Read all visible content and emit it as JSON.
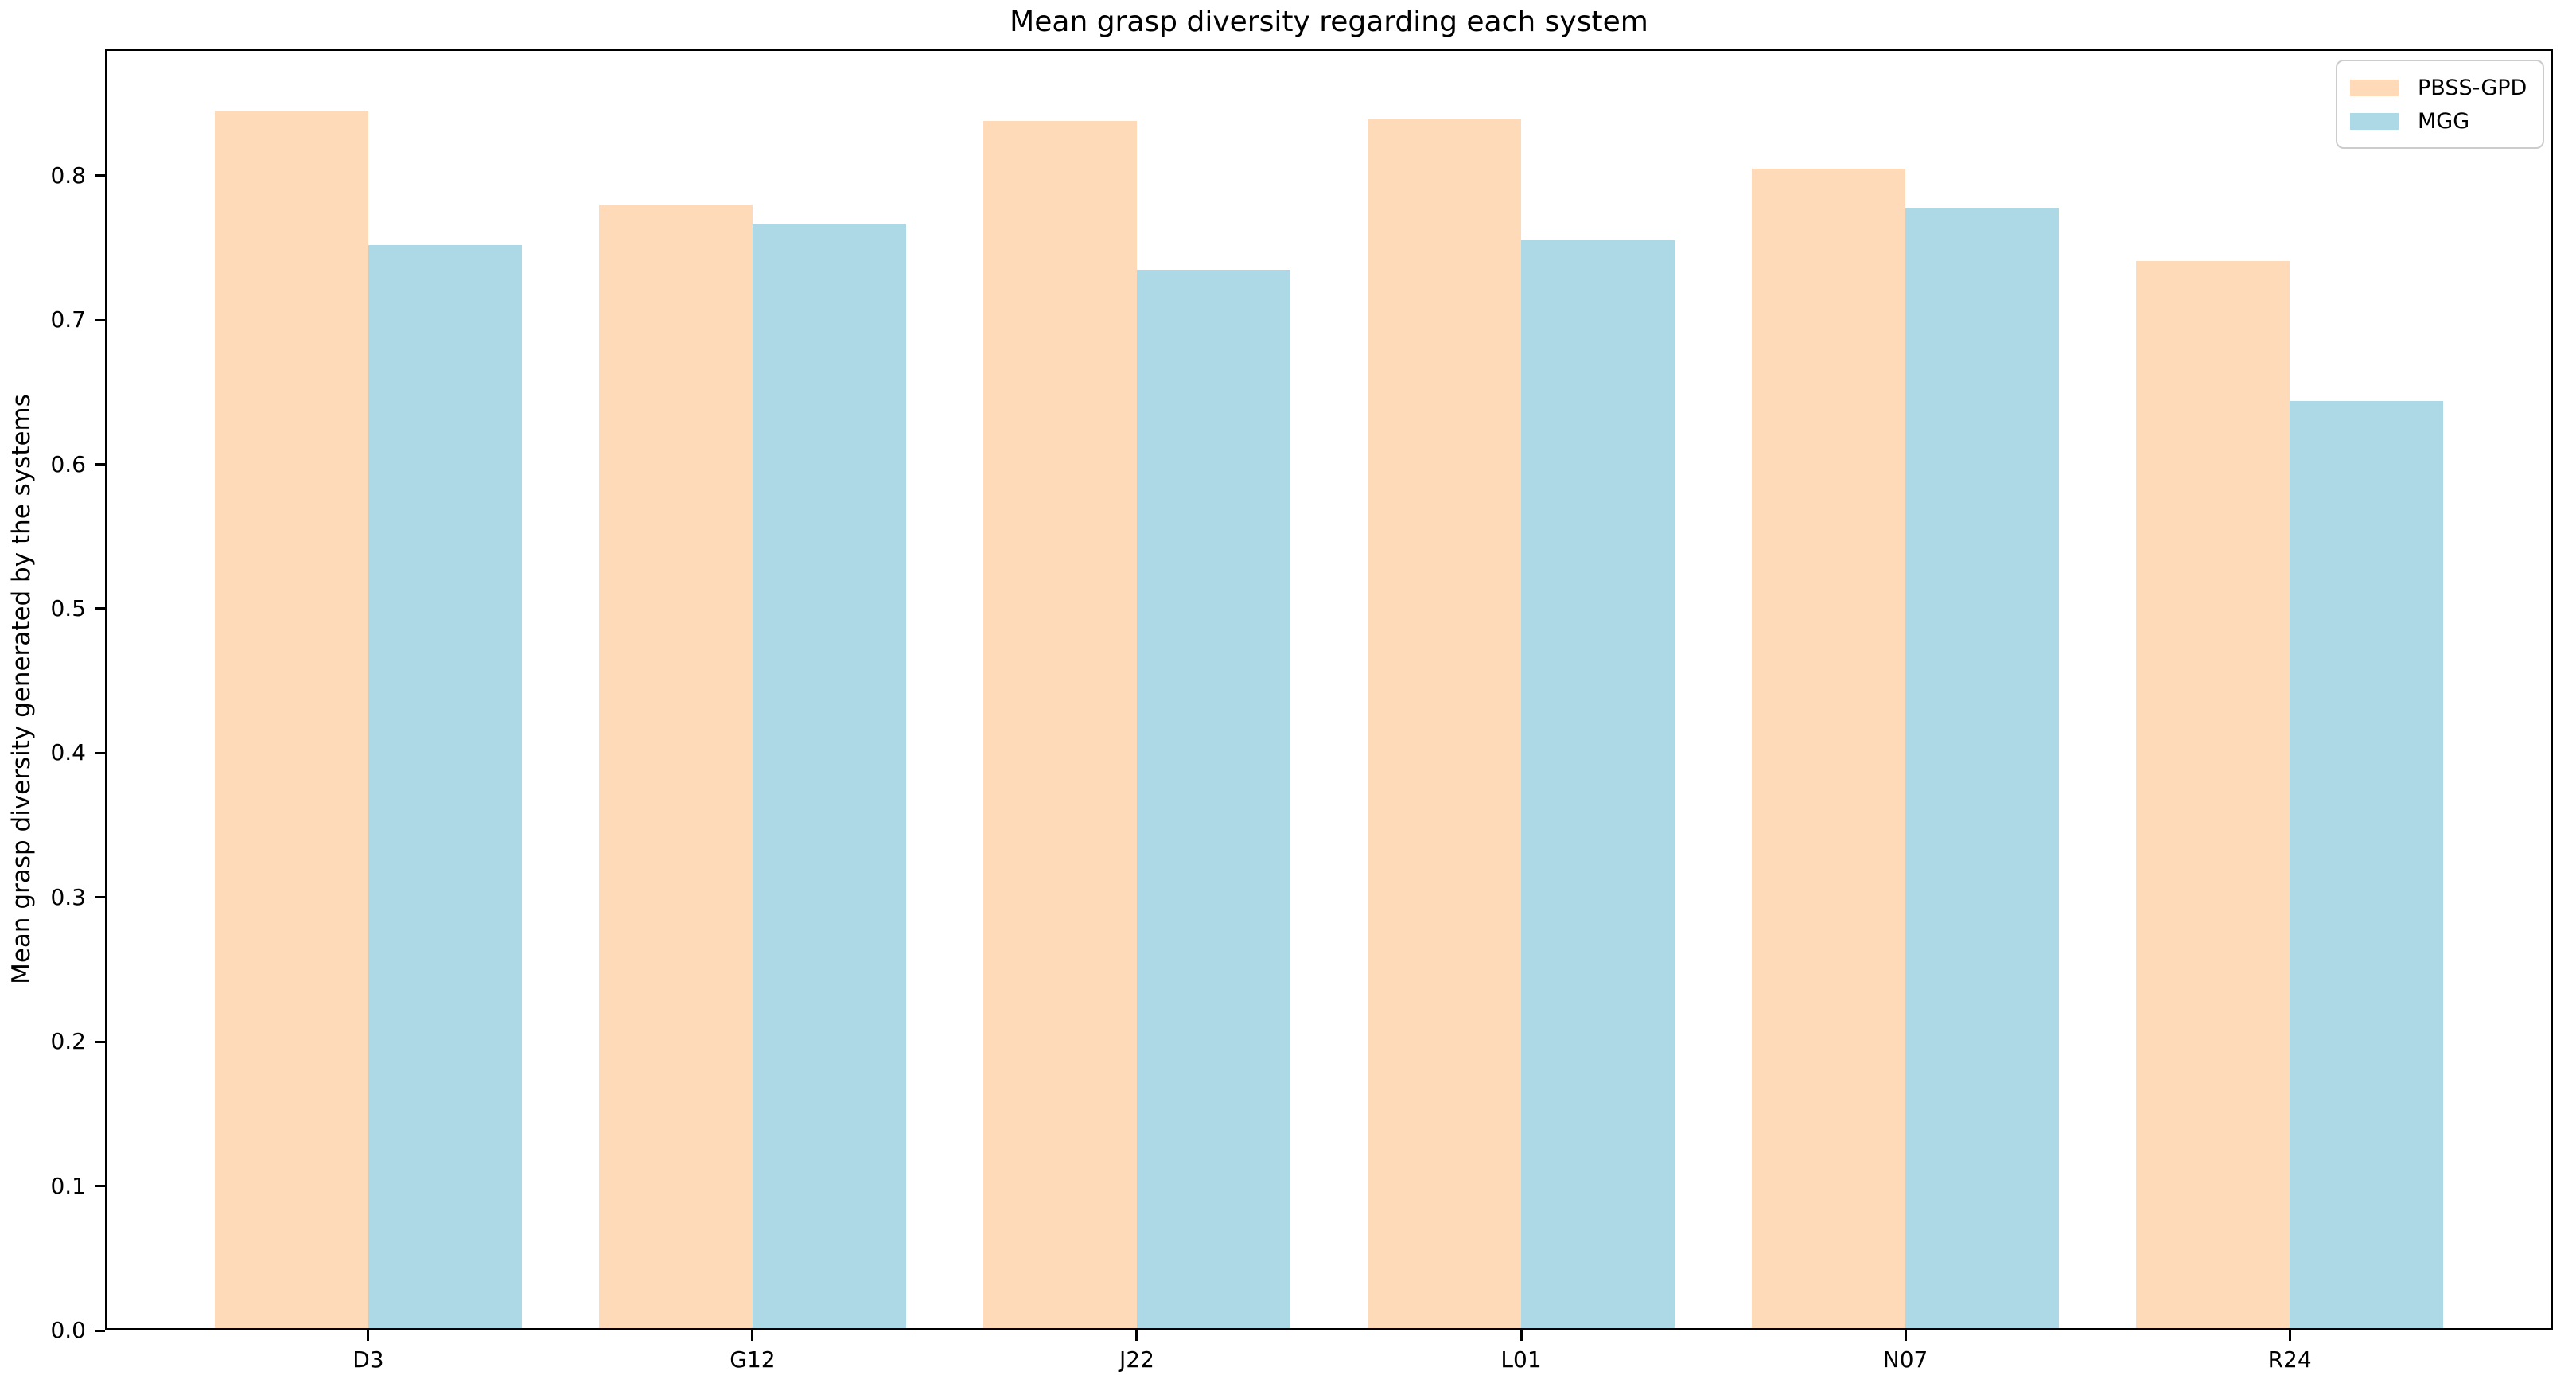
{
  "chart_data": {
    "type": "bar",
    "title": "Mean grasp diversity regarding each system",
    "xlabel": "",
    "ylabel": "Mean grasp diversity generated by the systems",
    "categories": [
      "D3",
      "G12",
      "J22",
      "L01",
      "N07",
      "R24"
    ],
    "series": [
      {
        "name": "PBSS-GPD",
        "color": "#FFDAB9",
        "values": [
          0.845,
          0.78,
          0.838,
          0.839,
          0.805,
          0.741
        ]
      },
      {
        "name": "MGG",
        "color": "#ADD8E6",
        "values": [
          0.752,
          0.766,
          0.735,
          0.755,
          0.777,
          0.644
        ]
      }
    ],
    "ylim": [
      0,
      0.888
    ],
    "yticks": [
      0.0,
      0.1,
      0.2,
      0.3,
      0.4,
      0.5,
      0.6,
      0.7,
      0.8
    ],
    "xlim": [
      -0.685,
      5.685
    ],
    "bar_width": 0.4,
    "grid": false,
    "legend_position": "upper right",
    "colors": {
      "spine": "#000000",
      "legend_border": "#cccccc",
      "background": "#ffffff"
    }
  }
}
